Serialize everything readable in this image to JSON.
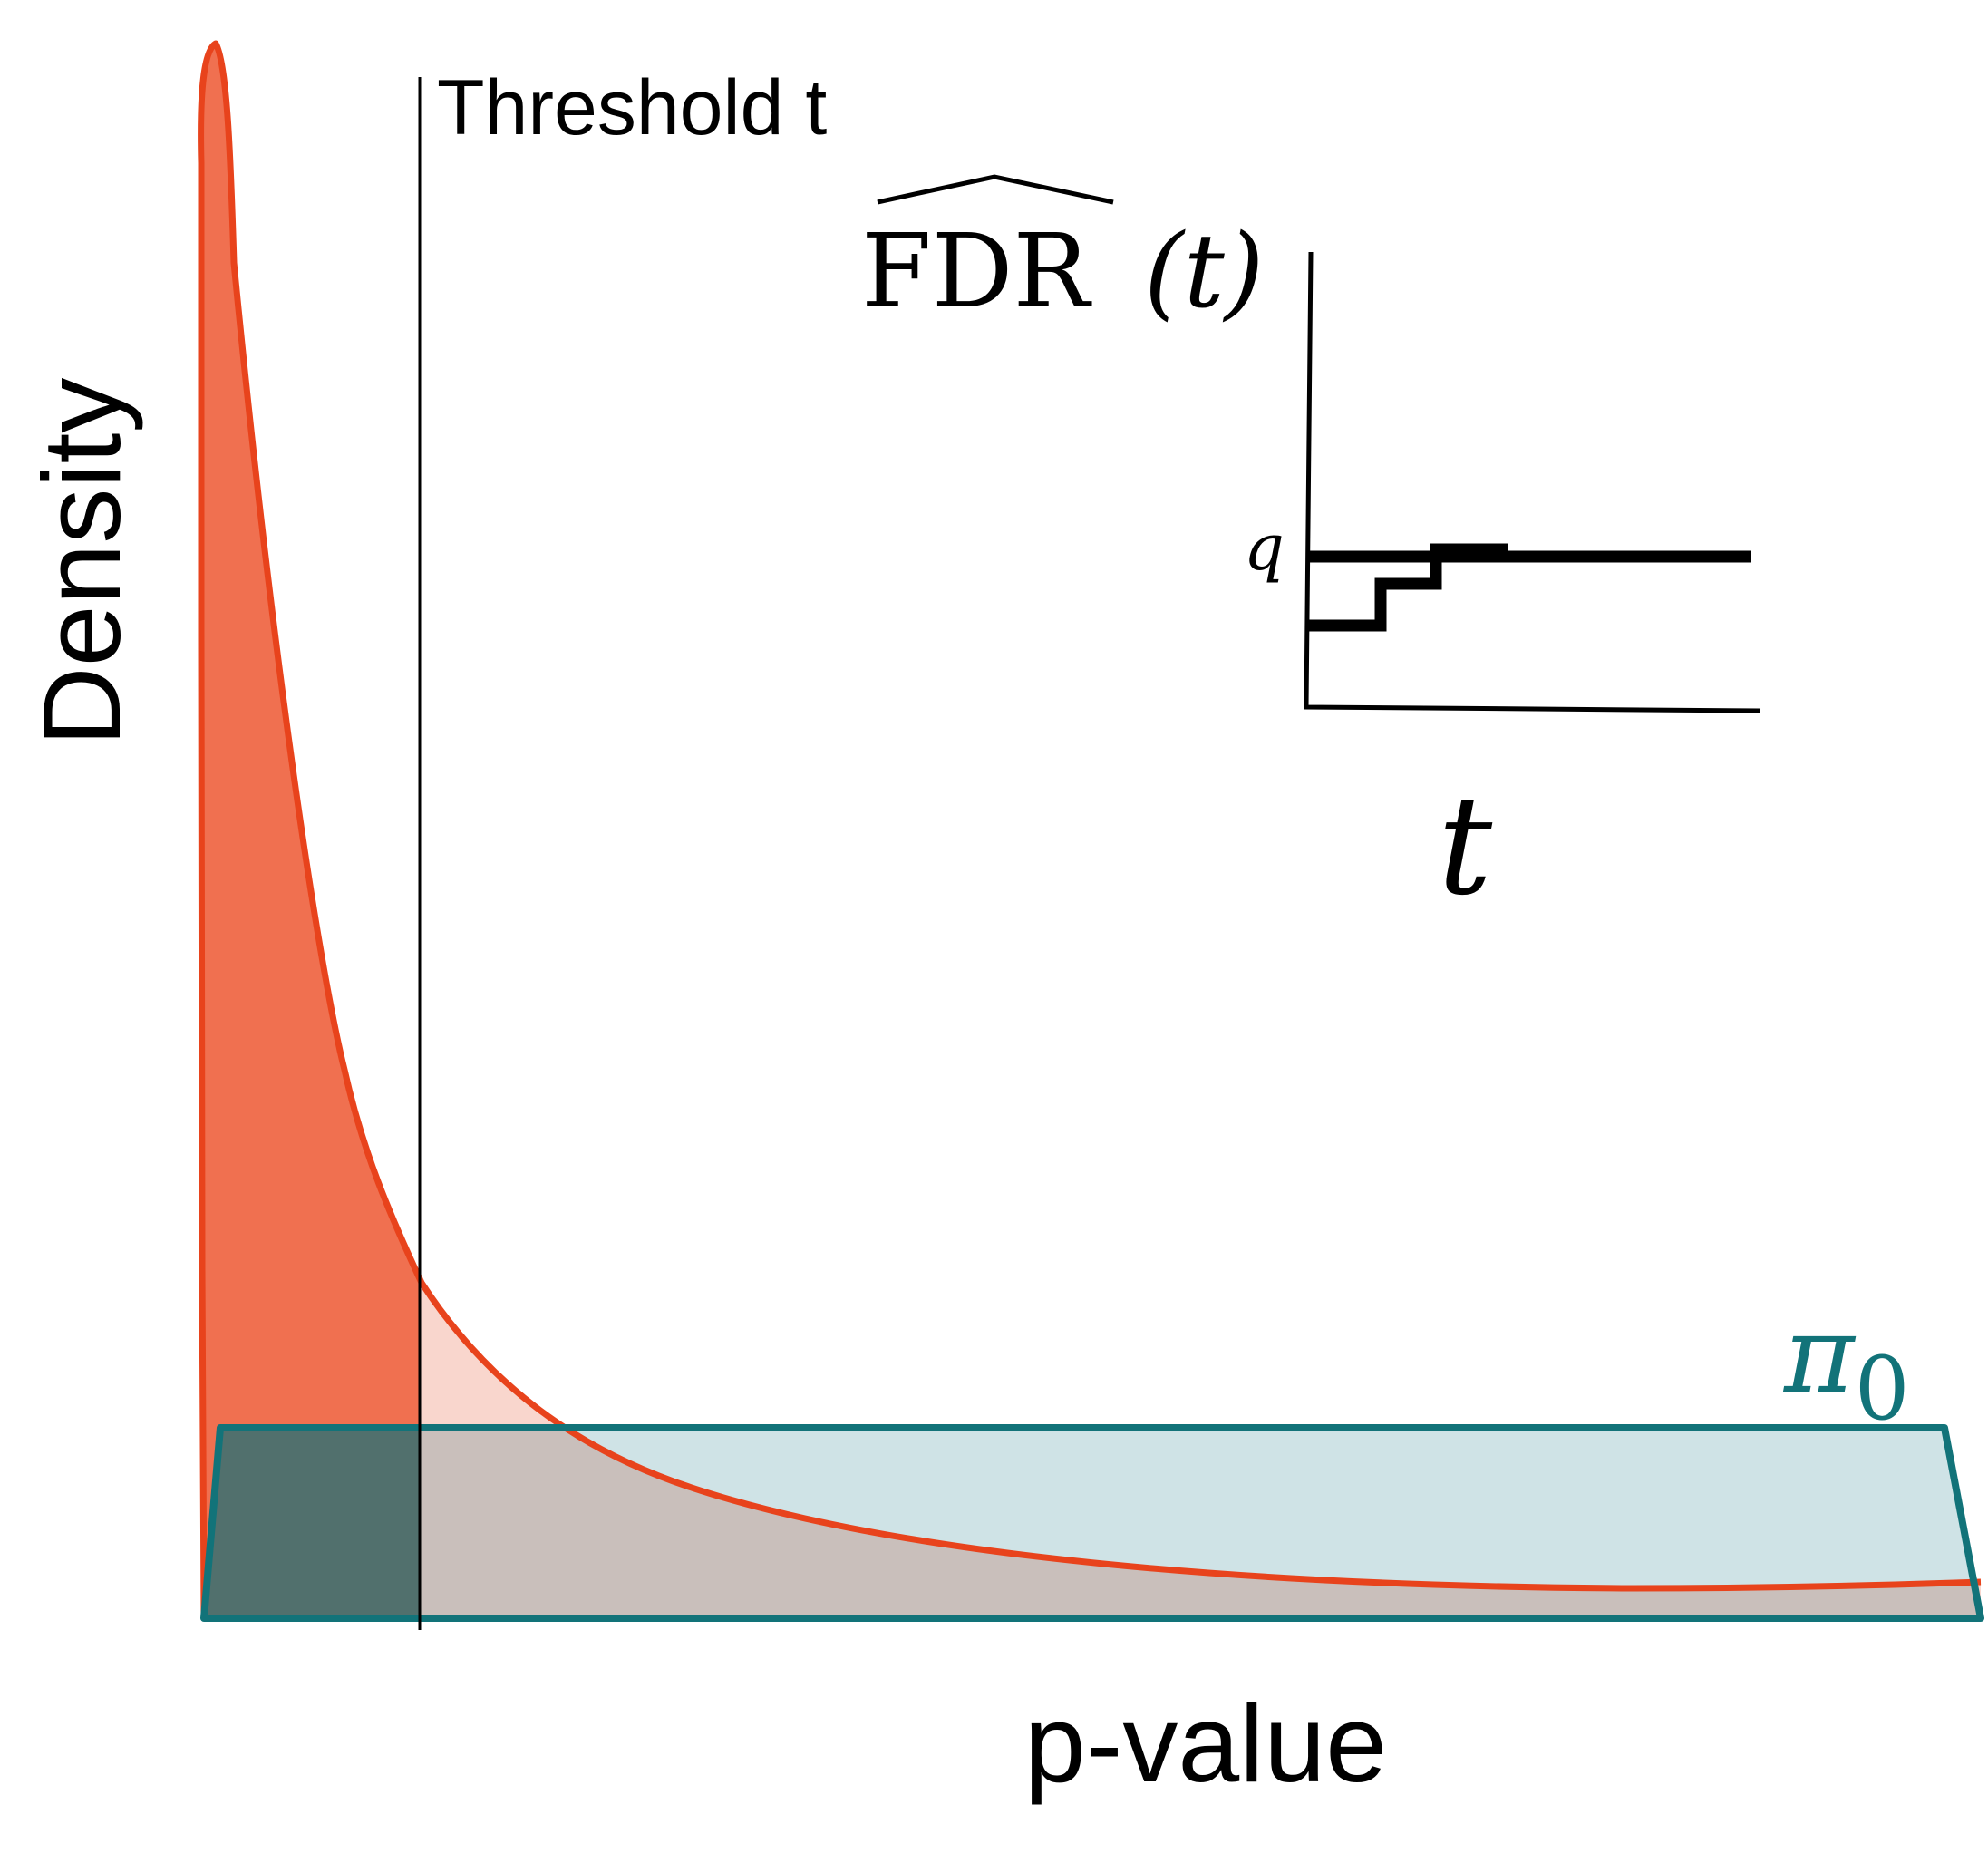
{
  "labels": {
    "y_axis": "Density",
    "x_axis": "p-value",
    "threshold": "Threshold t",
    "pi0": "π",
    "pi0_sub": "0",
    "inset_y": "FDR",
    "inset_y_arg": "(t)",
    "inset_x": "t",
    "inset_q": "q"
  },
  "colors": {
    "alternative_fill": "#f07050",
    "alternative_stroke": "#e8431c",
    "alternative_tail_fill": "#f9d6cd",
    "null_fill": "#cfe3e6",
    "null_stroke": "#127379",
    "overlap_fill": "#c9bfbb",
    "overlap_dark": "#51706d",
    "text": "#000000",
    "pi0_text": "#127379"
  }
}
